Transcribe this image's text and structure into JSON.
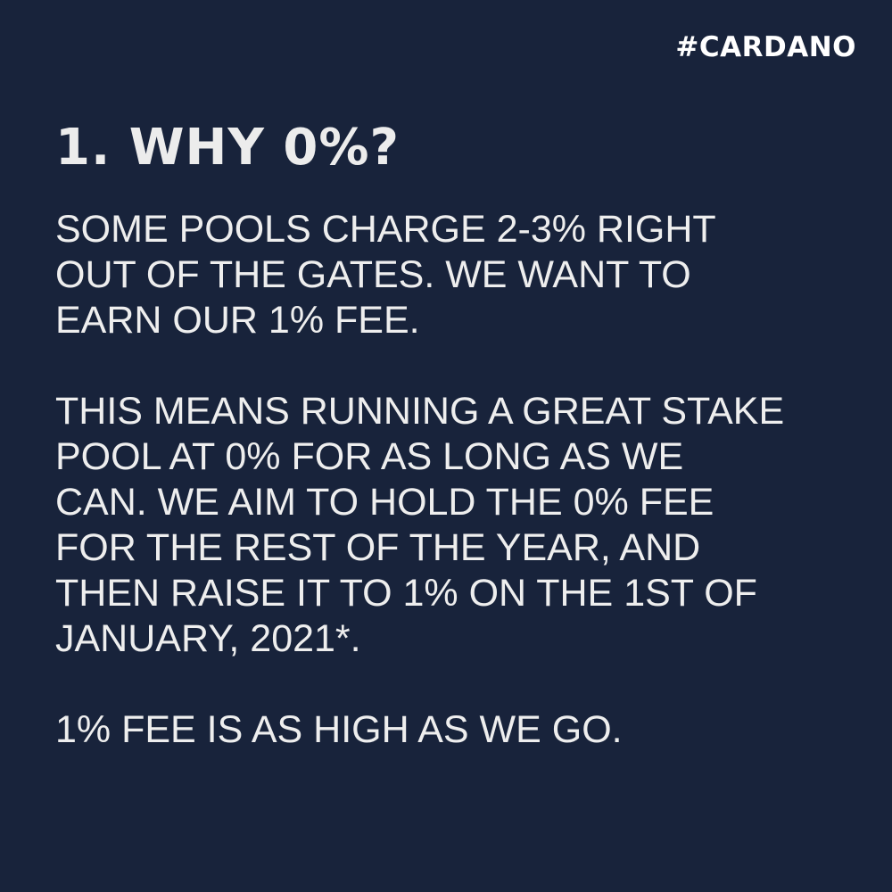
{
  "hashtag": "#CARDANO",
  "heading": "1. WHY 0%?",
  "paragraphs": [
    {
      "lines": [
        "SOME POOLS CHARGE 2-3% RIGHT",
        "OUT OF THE GATES. WE WANT TO",
        "EARN OUR 1% FEE."
      ]
    },
    {
      "lines": [
        "THIS MEANS RUNNING A GREAT STAKE",
        "POOL AT 0% FOR AS LONG AS WE",
        "CAN. WE AIM TO HOLD THE 0% FEE",
        "FOR THE REST OF THE YEAR, AND",
        "THEN RAISE IT TO 1% ON THE 1ST OF",
        "JANUARY, 2021*."
      ]
    },
    {
      "lines": [
        "1% FEE IS AS HIGH AS WE GO."
      ]
    }
  ],
  "colors": {
    "background": "#18233b",
    "text": "#eeeeee"
  }
}
